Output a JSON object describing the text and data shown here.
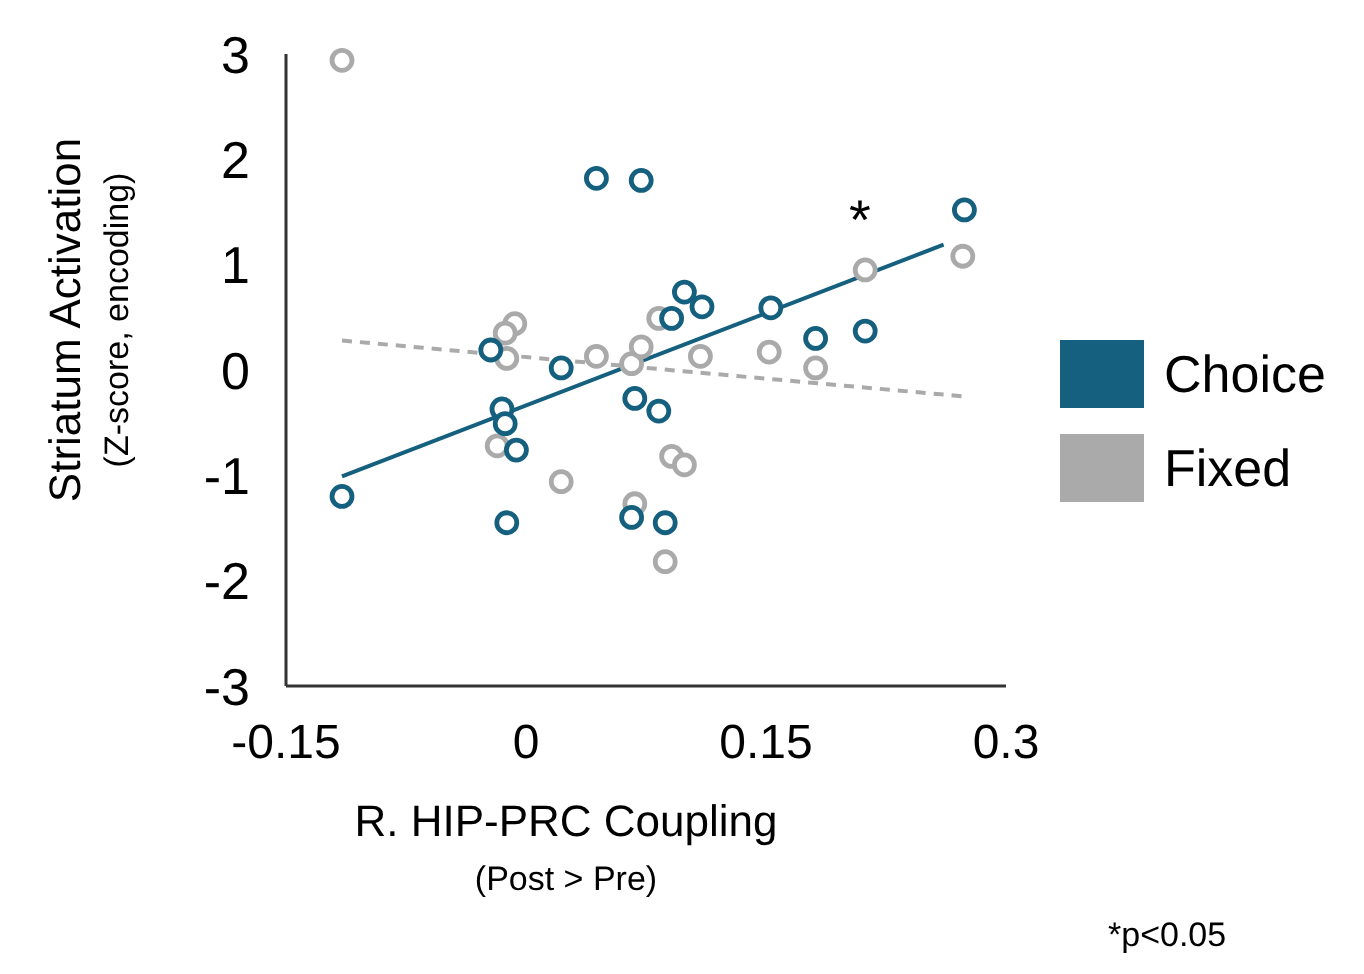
{
  "chart_data": {
    "type": "scatter",
    "xlabel": "R. HIP-PRC Coupling\n(Post > Pre)",
    "ylabel": "Striatum Activation\n(Z-score, encoding)",
    "xlim": [
      -0.15,
      0.3
    ],
    "ylim": [
      -3,
      3
    ],
    "xticks": [
      -0.15,
      0,
      0.15,
      0.3
    ],
    "yticks": [
      -3,
      -2,
      -1,
      0,
      1,
      2,
      3
    ],
    "grid": false,
    "legend": "right",
    "marker": "circle",
    "series": [
      {
        "name": "Fixed",
        "color": "#aaaaaa",
        "x": [
          -0.115,
          -0.007,
          -0.013,
          -0.012,
          0.044,
          0.066,
          0.072,
          0.083,
          0.109,
          0.152,
          0.181,
          0.212,
          0.273,
          -0.018,
          0.022,
          0.068,
          0.091,
          0.099,
          0.087
        ],
        "values": [
          2.94,
          0.44,
          0.35,
          0.11,
          0.13,
          0.06,
          0.22,
          0.49,
          0.13,
          0.17,
          0.02,
          0.95,
          1.08,
          -0.72,
          -1.06,
          -1.27,
          -0.82,
          -0.9,
          -1.82
        ]
      },
      {
        "name": "Choice",
        "color": "#15607f",
        "x": [
          0.044,
          0.072,
          0.274,
          0.099,
          0.091,
          0.11,
          0.153,
          0.181,
          0.212,
          -0.022,
          0.022,
          -0.015,
          -0.013,
          -0.006,
          0.068,
          0.083,
          -0.115,
          -0.012,
          0.066,
          0.087
        ],
        "values": [
          1.82,
          1.8,
          1.52,
          0.74,
          0.49,
          0.6,
          0.59,
          0.3,
          0.37,
          0.19,
          0.02,
          -0.37,
          -0.51,
          -0.76,
          -0.27,
          -0.39,
          -1.2,
          -1.45,
          -1.4,
          -1.45
        ]
      },
      {
        "type": "line",
        "color": "#aaaaaa",
        "line_style": "dashed",
        "marker": "none",
        "x": [
          -0.115,
          0.273
        ],
        "values": [
          0.28,
          -0.25
        ]
      },
      {
        "type": "line",
        "color": "#15607f",
        "line_style": "solid",
        "marker": "none",
        "x": [
          -0.115,
          0.261
        ],
        "values": [
          -1.01,
          1.19
        ]
      }
    ],
    "annotations": [
      "*",
      "*p<0.05"
    ]
  }
}
